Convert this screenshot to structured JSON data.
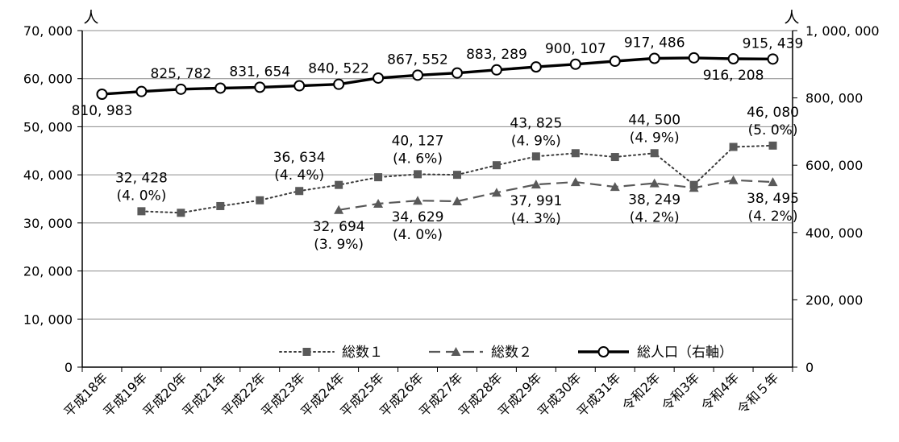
{
  "chart_data": {
    "type": "line",
    "categories": [
      "平成18年",
      "平成19年",
      "平成20年",
      "平成21年",
      "平成22年",
      "平成23年",
      "平成24年",
      "平成25年",
      "平成26年",
      "平成27年",
      "平成28年",
      "平成29年",
      "平成30年",
      "平成31年",
      "令和2年",
      "令和3年",
      "令和4年",
      "令和５年"
    ],
    "y_left": {
      "unit": "人",
      "min": 0,
      "max": 70000,
      "ticks": [
        "0",
        "10, 000",
        "20, 000",
        "30, 000",
        "40, 000",
        "50, 000",
        "60, 000",
        "70, 000"
      ]
    },
    "y_right": {
      "unit": "人",
      "min": 0,
      "max": 1000000,
      "ticks": [
        "0",
        "200, 000",
        "400, 000",
        "600, 000",
        "800, 000",
        "1, 000, 000"
      ]
    },
    "grid": true,
    "legend_position": "bottom-right",
    "series": [
      {
        "name": "総数１",
        "axis": "left",
        "style": "dotted",
        "marker": "square",
        "values": [
          null,
          32428,
          32100,
          33500,
          34700,
          36634,
          37900,
          39500,
          40127,
          40000,
          42000,
          43825,
          44500,
          43700,
          44500,
          37900,
          45800,
          46080
        ]
      },
      {
        "name": "総数２",
        "axis": "left",
        "style": "dashed",
        "marker": "triangle",
        "values": [
          null,
          null,
          null,
          null,
          null,
          null,
          32694,
          34000,
          34629,
          34500,
          36300,
          37991,
          38500,
          37500,
          38249,
          37300,
          38900,
          38495
        ]
      },
      {
        "name": "総人口（右軸）",
        "axis": "right",
        "style": "solid",
        "marker": "circle",
        "values": [
          810983,
          819000,
          825782,
          829000,
          831654,
          836000,
          840522,
          859000,
          867552,
          874000,
          883289,
          892000,
          900107,
          909000,
          917486,
          919000,
          916208,
          915439
        ]
      }
    ],
    "data_labels": [
      {
        "series": 0,
        "index": 1,
        "lines": [
          "32, 428",
          "(4. 0%)"
        ],
        "pos": "above"
      },
      {
        "series": 0,
        "index": 5,
        "lines": [
          "36, 634",
          "(4. 4%)"
        ],
        "pos": "above"
      },
      {
        "series": 0,
        "index": 8,
        "lines": [
          "40, 127",
          "(4. 6%)"
        ],
        "pos": "above"
      },
      {
        "series": 0,
        "index": 11,
        "lines": [
          "43, 825",
          "(4. 9%)"
        ],
        "pos": "above"
      },
      {
        "series": 0,
        "index": 14,
        "lines": [
          "44, 500",
          "(4. 9%)"
        ],
        "pos": "above"
      },
      {
        "series": 0,
        "index": 17,
        "lines": [
          "46, 080",
          "(5. 0%)"
        ],
        "pos": "above"
      },
      {
        "series": 1,
        "index": 6,
        "lines": [
          "32, 694",
          "(3. 9%)"
        ],
        "pos": "below"
      },
      {
        "series": 1,
        "index": 8,
        "lines": [
          "34, 629",
          "(4. 0%)"
        ],
        "pos": "below"
      },
      {
        "series": 1,
        "index": 11,
        "lines": [
          "37, 991",
          "(4. 3%)"
        ],
        "pos": "below"
      },
      {
        "series": 1,
        "index": 14,
        "lines": [
          "38, 249",
          "(4. 2%)"
        ],
        "pos": "below"
      },
      {
        "series": 1,
        "index": 17,
        "lines": [
          "38, 495",
          "(4. 2%)"
        ],
        "pos": "below"
      },
      {
        "series": 2,
        "index": 0,
        "lines": [
          "810, 983"
        ],
        "pos": "below"
      },
      {
        "series": 2,
        "index": 2,
        "lines": [
          "825, 782"
        ],
        "pos": "above"
      },
      {
        "series": 2,
        "index": 4,
        "lines": [
          "831, 654"
        ],
        "pos": "above"
      },
      {
        "series": 2,
        "index": 6,
        "lines": [
          "840, 522"
        ],
        "pos": "above"
      },
      {
        "series": 2,
        "index": 8,
        "lines": [
          "867, 552"
        ],
        "pos": "above"
      },
      {
        "series": 2,
        "index": 10,
        "lines": [
          "883, 289"
        ],
        "pos": "above"
      },
      {
        "series": 2,
        "index": 12,
        "lines": [
          "900, 107"
        ],
        "pos": "above"
      },
      {
        "series": 2,
        "index": 14,
        "lines": [
          "917, 486"
        ],
        "pos": "above"
      },
      {
        "series": 2,
        "index": 16,
        "lines": [
          "916, 208"
        ],
        "pos": "below"
      },
      {
        "series": 2,
        "index": 17,
        "lines": [
          "915, 439"
        ],
        "pos": "above"
      }
    ]
  }
}
